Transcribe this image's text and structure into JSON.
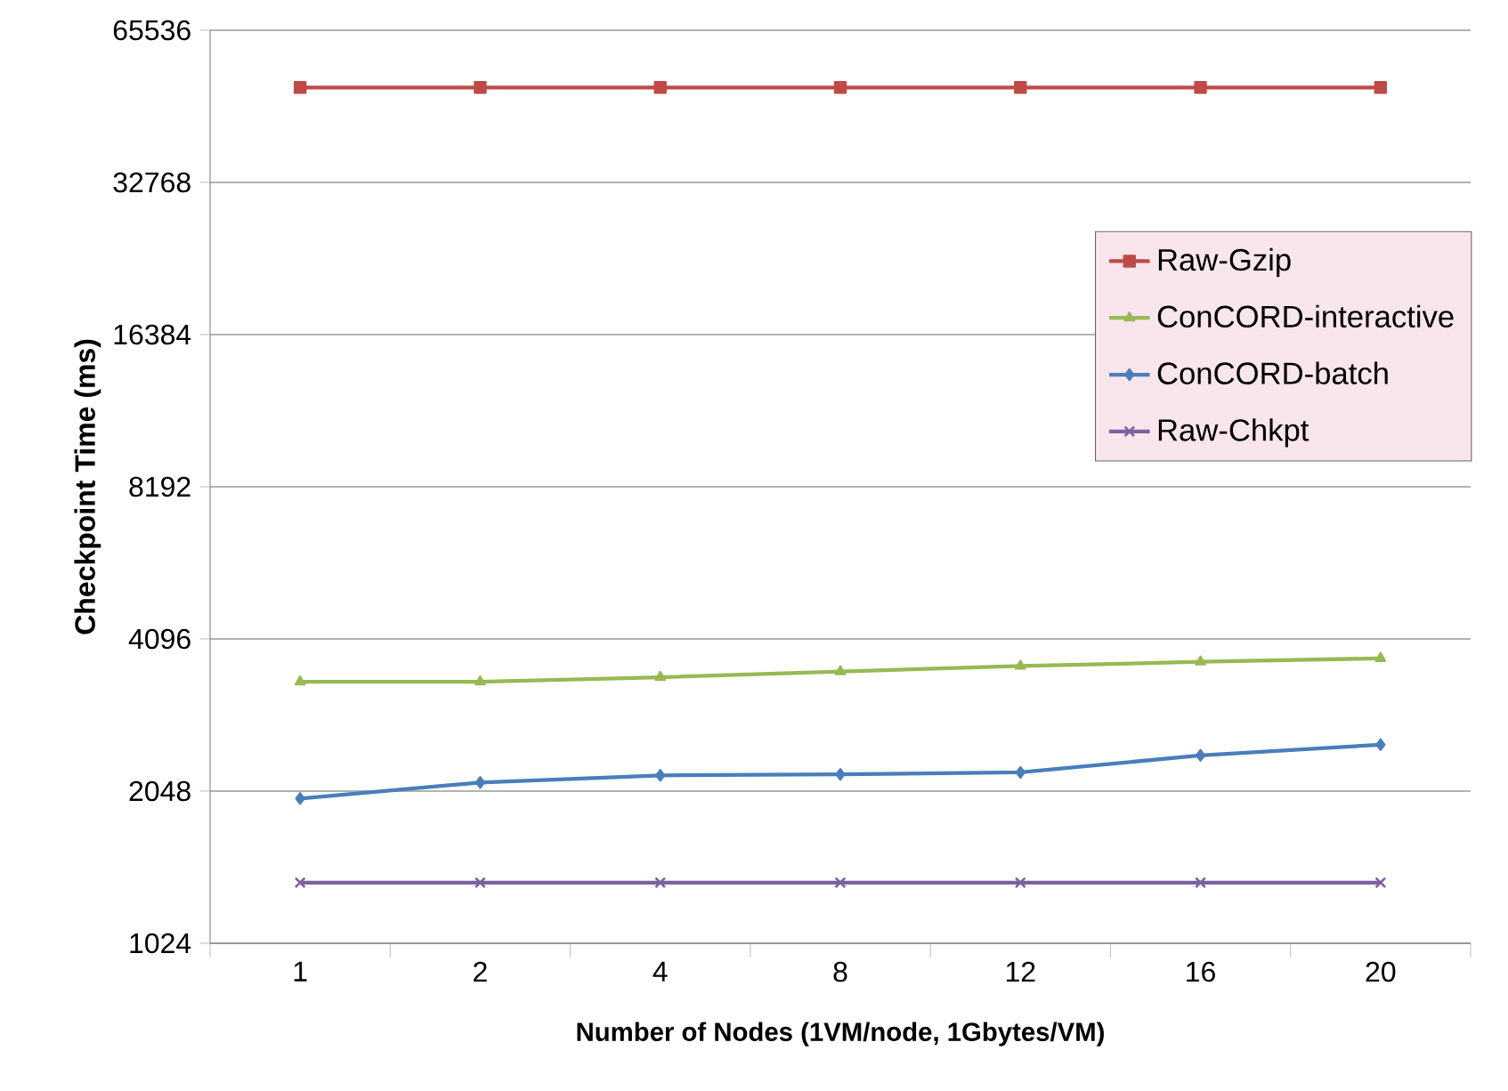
{
  "chart_data": {
    "type": "line",
    "xlabel": "Number of Nodes (1VM/node, 1Gbytes/VM)",
    "ylabel": "Checkpoint Time (ms)",
    "categories": [
      "1",
      "2",
      "4",
      "8",
      "12",
      "16",
      "20"
    ],
    "log": "y",
    "ylim": [
      1024,
      65536
    ],
    "yticks": [
      1024,
      2048,
      4096,
      8192,
      16384,
      32768,
      65536
    ],
    "grid": "y",
    "legend": "right",
    "series": [
      {
        "name": "Raw-Gzip",
        "color": "#be4b48",
        "marker": "square",
        "values": [
          50500,
          50500,
          50500,
          50500,
          50500,
          50500,
          50500
        ]
      },
      {
        "name": "ConCORD-interactive",
        "color": "#98b954",
        "marker": "triangle",
        "values": [
          3370,
          3370,
          3440,
          3530,
          3620,
          3690,
          3750
        ]
      },
      {
        "name": "ConCORD-batch",
        "color": "#4a7ebb",
        "marker": "diamond",
        "values": [
          1980,
          2130,
          2200,
          2210,
          2230,
          2410,
          2530
        ]
      },
      {
        "name": "Raw-Chkpt",
        "color": "#7d60a0",
        "marker": "cross",
        "values": [
          1350,
          1350,
          1350,
          1350,
          1350,
          1350,
          1350
        ]
      }
    ]
  }
}
